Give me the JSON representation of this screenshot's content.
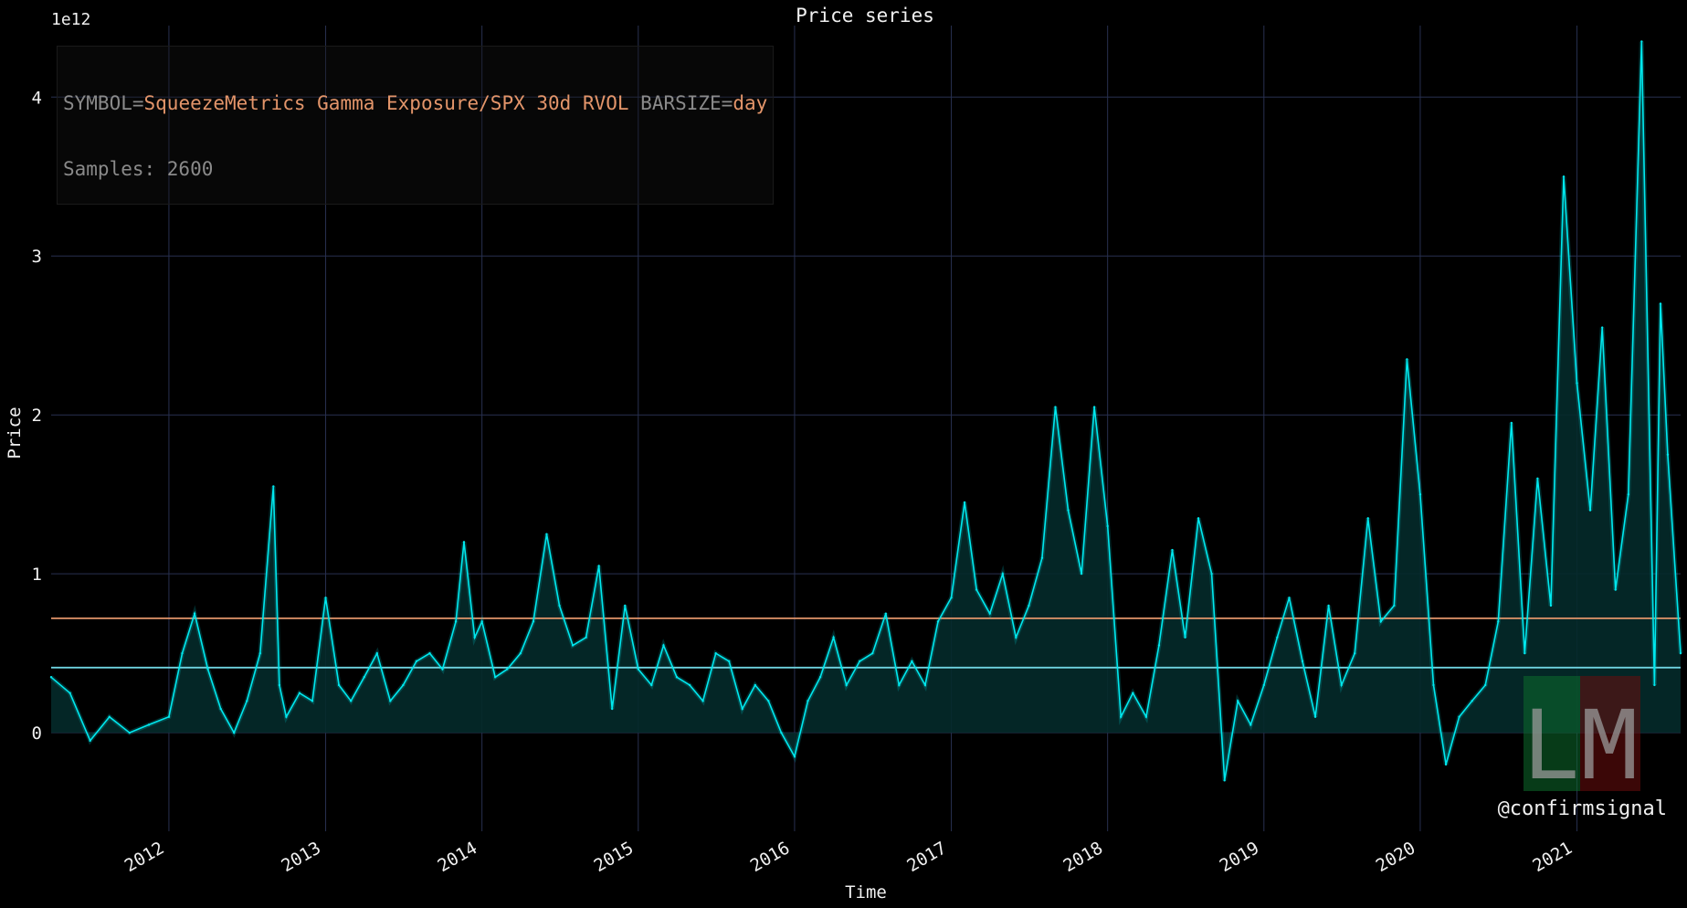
{
  "title": "Price series",
  "info": {
    "symbol_key": "SYMBOL=",
    "symbol_value": "SqueezeMetrics Gamma Exposure/SPX 30d RVOL",
    "barsize_key": " BARSIZE=",
    "barsize_value": "day",
    "samples_label": "Samples: 2600"
  },
  "watermark": {
    "handle": "@confirmsignal",
    "logo_letters": [
      "L",
      "M"
    ]
  },
  "colors": {
    "background": "#000000",
    "grid": "#283050",
    "series": "#00e8ee",
    "fill": "#042a2a",
    "mean_line": "#e3956a",
    "median_line": "#6fd3e0",
    "logo_green": "#0c6b2c",
    "logo_red": "#6b0c0c"
  },
  "chart_data": {
    "type": "line",
    "title": "Price series",
    "xlabel": "Time",
    "ylabel": "Price",
    "y_offset_label": "1e12",
    "x_tick_labels": [
      "2012",
      "2013",
      "2014",
      "2015",
      "2016",
      "2017",
      "2018",
      "2019",
      "2020",
      "2021"
    ],
    "y_tick_labels": [
      "0",
      "1",
      "2",
      "3",
      "4"
    ],
    "y_ticks": [
      0,
      1,
      2,
      3,
      4
    ],
    "xlim": [
      "2011-04-01",
      "2021-08-31"
    ],
    "ylim": [
      -0.62,
      4.45
    ],
    "grid": true,
    "reference_lines": [
      {
        "kind": "mean",
        "value": 0.72
      },
      {
        "kind": "median",
        "value": 0.41
      }
    ],
    "series": [
      {
        "unit": "1e12",
        "x": [
          "2011-04-01",
          "2011-05-15",
          "2011-07-01",
          "2011-08-15",
          "2011-10-01",
          "2011-11-15",
          "2012-01-01",
          "2012-02-01",
          "2012-03-01",
          "2012-04-01",
          "2012-05-01",
          "2012-06-01",
          "2012-07-01",
          "2012-08-01",
          "2012-09-01",
          "2012-09-15",
          "2012-10-01",
          "2012-11-01",
          "2012-12-01",
          "2013-01-01",
          "2013-02-01",
          "2013-03-01",
          "2013-04-01",
          "2013-05-01",
          "2013-06-01",
          "2013-07-01",
          "2013-08-01",
          "2013-09-01",
          "2013-10-01",
          "2013-11-01",
          "2013-11-20",
          "2013-12-15",
          "2014-01-01",
          "2014-02-01",
          "2014-03-01",
          "2014-04-01",
          "2014-05-01",
          "2014-06-01",
          "2014-07-01",
          "2014-08-01",
          "2014-09-01",
          "2014-10-01",
          "2014-11-01",
          "2014-12-01",
          "2015-01-01",
          "2015-02-01",
          "2015-03-01",
          "2015-04-01",
          "2015-05-01",
          "2015-06-01",
          "2015-07-01",
          "2015-08-01",
          "2015-09-01",
          "2015-10-01",
          "2015-11-01",
          "2015-12-01",
          "2016-01-01",
          "2016-02-01",
          "2016-03-01",
          "2016-04-01",
          "2016-05-01",
          "2016-06-01",
          "2016-07-01",
          "2016-08-01",
          "2016-09-01",
          "2016-10-01",
          "2016-11-01",
          "2016-12-01",
          "2017-01-01",
          "2017-02-01",
          "2017-03-01",
          "2017-04-01",
          "2017-05-01",
          "2017-06-01",
          "2017-07-01",
          "2017-08-01",
          "2017-09-01",
          "2017-10-01",
          "2017-11-01",
          "2017-12-01",
          "2018-01-01",
          "2018-02-01",
          "2018-03-01",
          "2018-04-01",
          "2018-05-01",
          "2018-06-01",
          "2018-07-01",
          "2018-08-01",
          "2018-09-01",
          "2018-10-01",
          "2018-11-01",
          "2018-12-01",
          "2019-01-01",
          "2019-02-01",
          "2019-03-01",
          "2019-04-01",
          "2019-05-01",
          "2019-06-01",
          "2019-07-01",
          "2019-08-01",
          "2019-09-01",
          "2019-10-01",
          "2019-11-01",
          "2019-12-01",
          "2020-01-01",
          "2020-02-01",
          "2020-03-01",
          "2020-04-01",
          "2020-05-01",
          "2020-06-01",
          "2020-07-01",
          "2020-08-01",
          "2020-09-01",
          "2020-10-01",
          "2020-11-01",
          "2020-12-01",
          "2021-01-01",
          "2021-02-01",
          "2021-03-01",
          "2021-04-01",
          "2021-05-01",
          "2021-06-01",
          "2021-07-01",
          "2021-07-15",
          "2021-08-01",
          "2021-08-31"
        ],
        "y": [
          0.35,
          0.25,
          -0.05,
          0.1,
          0.0,
          0.05,
          0.1,
          0.5,
          0.75,
          0.4,
          0.15,
          0.0,
          0.2,
          0.5,
          1.55,
          0.3,
          0.1,
          0.25,
          0.2,
          0.85,
          0.3,
          0.2,
          0.35,
          0.5,
          0.2,
          0.3,
          0.45,
          0.5,
          0.4,
          0.7,
          1.2,
          0.6,
          0.7,
          0.35,
          0.4,
          0.5,
          0.7,
          1.25,
          0.8,
          0.55,
          0.6,
          1.05,
          0.15,
          0.8,
          0.4,
          0.3,
          0.55,
          0.35,
          0.3,
          0.2,
          0.5,
          0.45,
          0.15,
          0.3,
          0.2,
          0.0,
          -0.15,
          0.2,
          0.35,
          0.6,
          0.3,
          0.45,
          0.5,
          0.75,
          0.3,
          0.45,
          0.3,
          0.7,
          0.85,
          1.45,
          0.9,
          0.75,
          1.0,
          0.6,
          0.8,
          1.1,
          2.05,
          1.4,
          1.0,
          2.05,
          1.3,
          0.1,
          0.25,
          0.1,
          0.55,
          1.15,
          0.6,
          1.35,
          1.0,
          -0.3,
          0.2,
          0.05,
          0.3,
          0.6,
          0.85,
          0.45,
          0.1,
          0.8,
          0.3,
          0.5,
          1.35,
          0.7,
          0.8,
          2.35,
          1.5,
          0.3,
          -0.2,
          0.1,
          0.2,
          0.3,
          0.7,
          1.95,
          0.5,
          1.6,
          0.8,
          3.5,
          2.2,
          1.4,
          2.55,
          0.9,
          1.5,
          4.35,
          0.3,
          2.7,
          1.75,
          0.5
        ]
      }
    ]
  }
}
